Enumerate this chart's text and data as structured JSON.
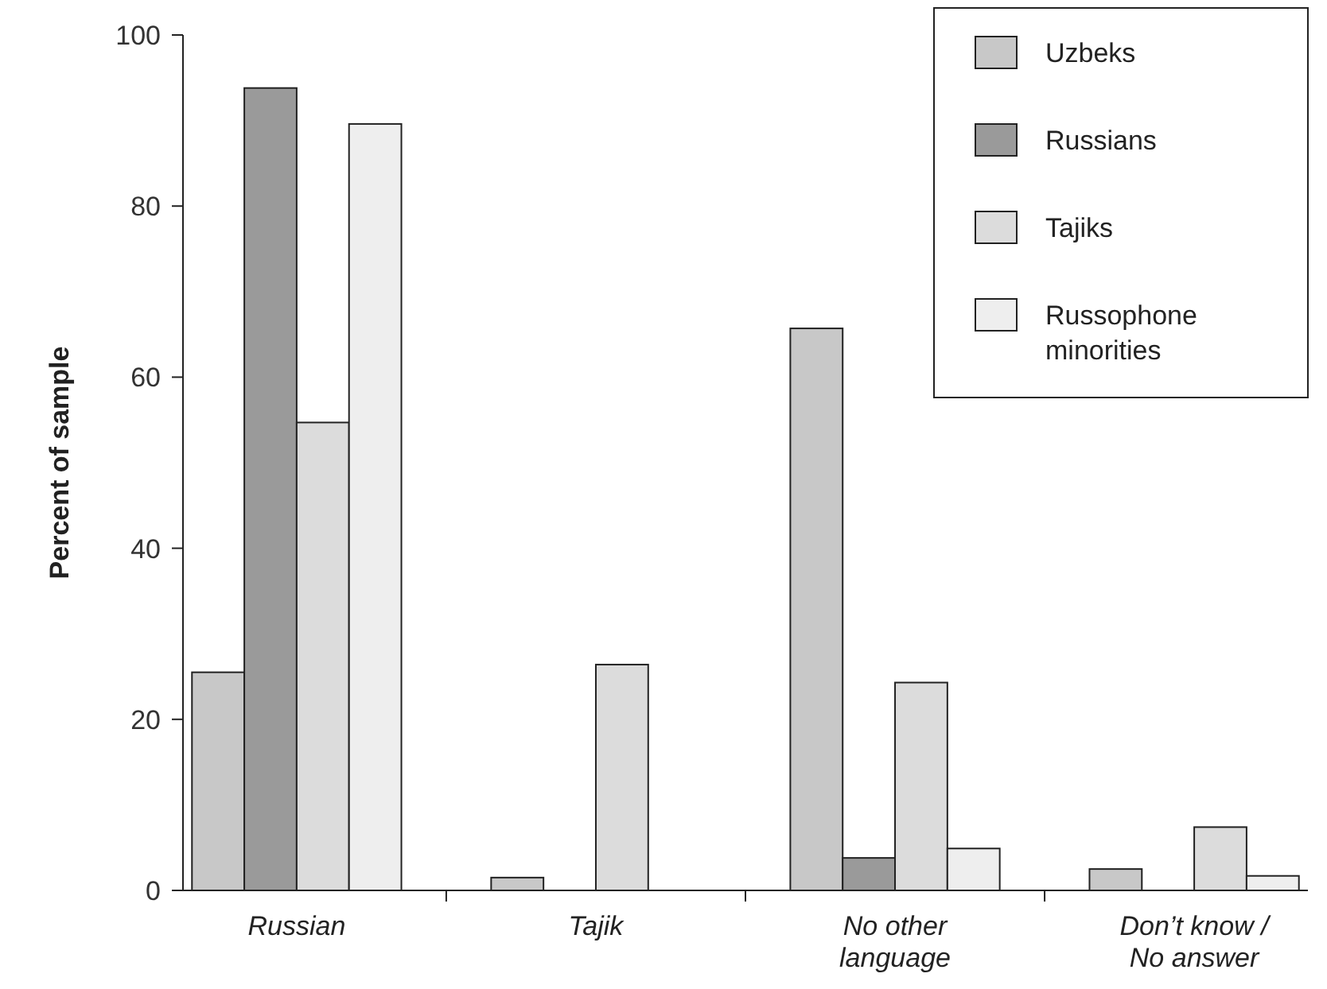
{
  "chart_data": {
    "type": "bar",
    "ylabel": "Percent of sample",
    "categories": [
      "Russian",
      "Tajik",
      "No other\nlanguage",
      "Don’t know /\nNo answer"
    ],
    "series": [
      {
        "name": "Uzbeks",
        "color": "#c8c8c8",
        "values": [
          25.5,
          1.5,
          65.7,
          2.5
        ]
      },
      {
        "name": "Russians",
        "color": "#9a9a9a",
        "values": [
          93.8,
          0,
          3.8,
          0
        ]
      },
      {
        "name": "Tajiks",
        "color": "#dcdcdc",
        "values": [
          54.7,
          26.4,
          24.3,
          7.4
        ]
      },
      {
        "name": "Russophone\nminorities",
        "color": "#eeeeee",
        "values": [
          89.6,
          0,
          4.9,
          1.7
        ]
      }
    ],
    "ylim": [
      0,
      100
    ],
    "yticks": [
      0,
      20,
      40,
      60,
      80,
      100
    ],
    "grid": false,
    "legend": "top right"
  }
}
